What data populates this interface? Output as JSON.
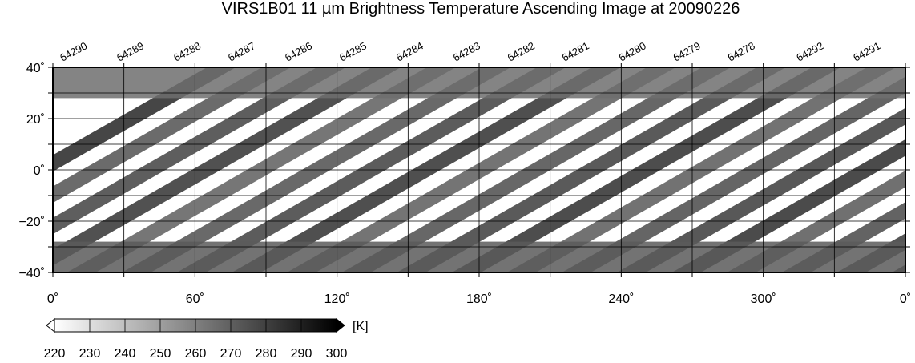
{
  "title": "VIRS1B01 11 µm Brightness Temperature Ascending Image at 20090226",
  "map": {
    "projection": "equirectangular",
    "lon_range": [
      0,
      360
    ],
    "lat_range": [
      -40,
      40
    ],
    "lon_ticks": [
      {
        "value": 0,
        "label": "0˚"
      },
      {
        "value": 60,
        "label": "60˚"
      },
      {
        "value": 120,
        "label": "120˚"
      },
      {
        "value": 180,
        "label": "180˚"
      },
      {
        "value": 240,
        "label": "240˚"
      },
      {
        "value": 300,
        "label": "300˚"
      },
      {
        "value": 360,
        "label": "0˚"
      }
    ],
    "lat_ticks": [
      {
        "value": 40,
        "label": "40˚"
      },
      {
        "value": 20,
        "label": "20˚"
      },
      {
        "value": 0,
        "label": "0˚"
      },
      {
        "value": -20,
        "label": "−20˚"
      },
      {
        "value": -40,
        "label": "−40˚"
      }
    ],
    "grid_lon_step": 30,
    "grid_lat_step": 10,
    "orbits": [
      {
        "label": "64290",
        "lon": 4
      },
      {
        "label": "64289",
        "lon": 28
      },
      {
        "label": "64288",
        "lon": 52
      },
      {
        "label": "64287",
        "lon": 75
      },
      {
        "label": "64286",
        "lon": 99
      },
      {
        "label": "64285",
        "lon": 122
      },
      {
        "label": "64284",
        "lon": 146
      },
      {
        "label": "64283",
        "lon": 170
      },
      {
        "label": "64282",
        "lon": 193
      },
      {
        "label": "64281",
        "lon": 216
      },
      {
        "label": "64280",
        "lon": 240
      },
      {
        "label": "64279",
        "lon": 263
      },
      {
        "label": "64278",
        "lon": 286
      },
      {
        "label": "64292",
        "lon": 315
      },
      {
        "label": "64291",
        "lon": 339
      }
    ]
  },
  "colorbar": {
    "unit": "[K]",
    "min": 220,
    "max": 300,
    "ticks": [
      "220",
      "230",
      "240",
      "250",
      "260",
      "270",
      "280",
      "290",
      "300"
    ],
    "colors": {
      "low": "#ffffff",
      "high": "#000000"
    }
  }
}
